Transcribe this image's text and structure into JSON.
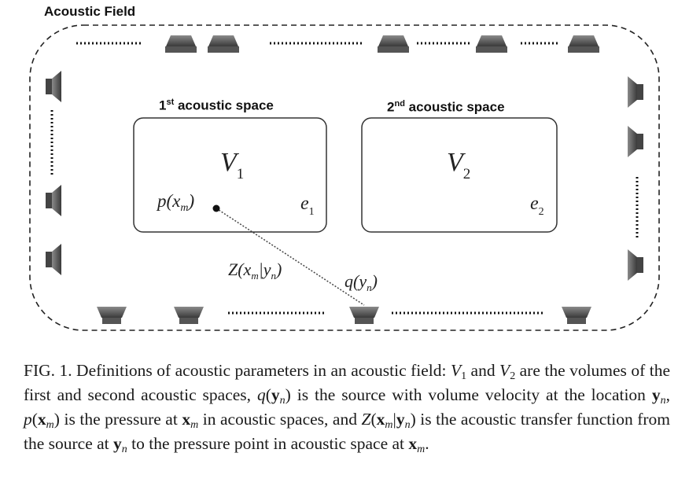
{
  "figure": {
    "title": "Acoustic Field",
    "space1": {
      "ordinal": "1",
      "sup": "st",
      "rest": " acoustic space",
      "volume": "V",
      "volume_sub": "1",
      "error": "e",
      "error_sub": "1"
    },
    "space2": {
      "ordinal": "2",
      "sup": "nd",
      "rest": " acoustic space",
      "volume": "V",
      "volume_sub": "2",
      "error": "e",
      "error_sub": "2"
    },
    "pressure_label": "p(x",
    "pressure_sub": "m",
    "pressure_close": ")",
    "transfer_label": "Z(x",
    "transfer_sub_m": "m",
    "transfer_mid": "|y",
    "transfer_sub_n": "n",
    "transfer_close": ")",
    "source_label": "q(y",
    "source_sub": "n",
    "source_close": ")"
  },
  "caption": {
    "prefix": "FIG. 1. Definitions of acoustic parameters in an acoustic field: ",
    "v": "V",
    "v1_sub": "1",
    "and": " and ",
    "v2_sub": "2",
    "t1": " are the volumes of the first and second acoustic spaces, ",
    "q": "q",
    "y": "y",
    "n": "n",
    "m": "m",
    "x": "x",
    "open": "(",
    "close": ")",
    "t2": " is the source with volume velocity at the location ",
    "comma": ", ",
    "p": "p",
    "t3": " is the pressure at ",
    "t4": " in acoustic spaces, and ",
    "Z": "Z",
    "bar": "|",
    "t5": " is the acoustic transfer function from the source at ",
    "t6": " to the pressure point in acoustic space at ",
    "period": "."
  }
}
